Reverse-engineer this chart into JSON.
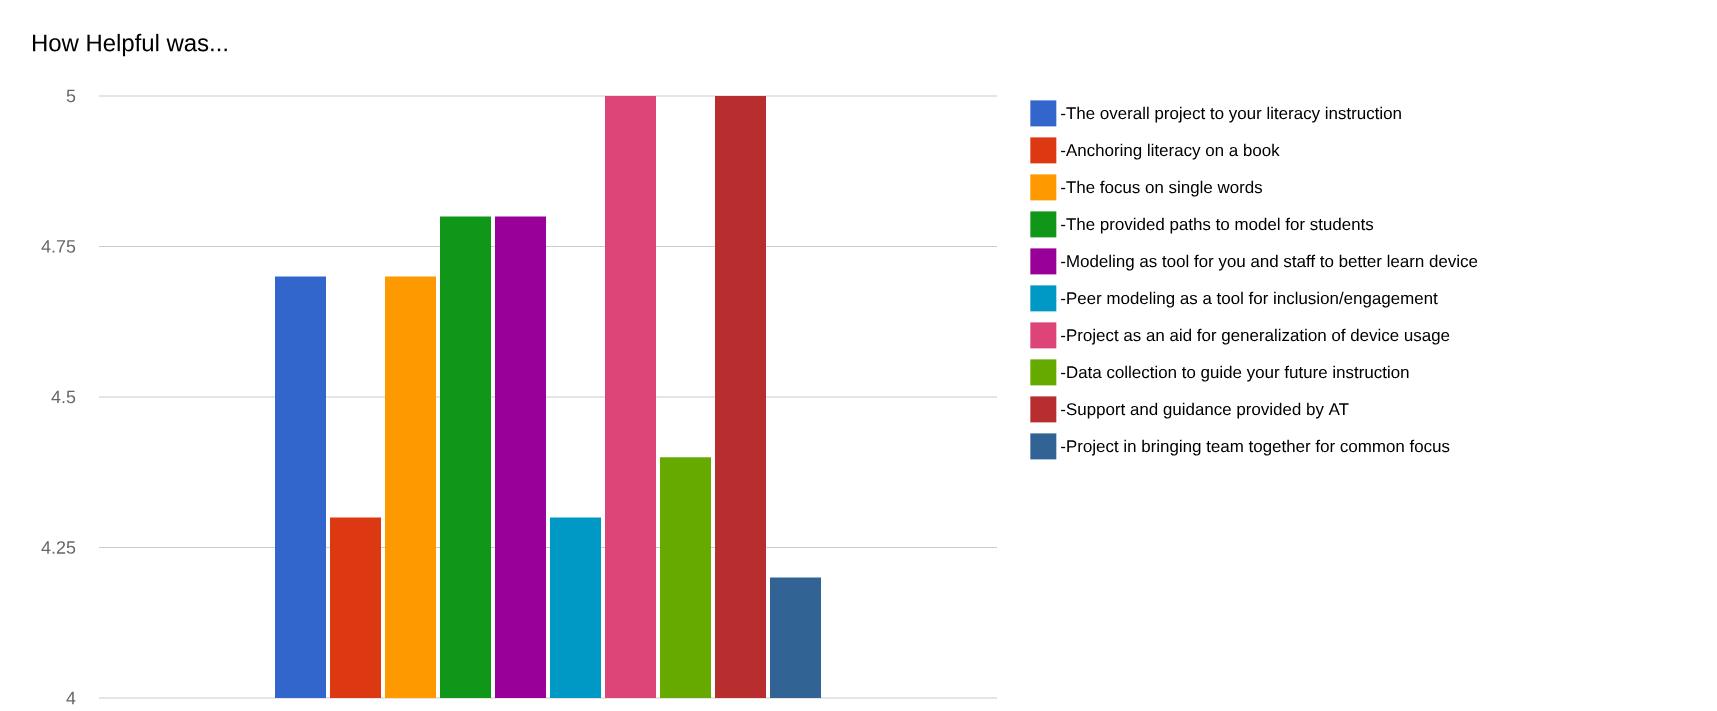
{
  "chart_data": {
    "type": "bar",
    "title": "How Helpful was...",
    "categories": [
      null
    ],
    "series": [
      {
        "name": "-The overall project to your literacy instruction",
        "color": "#3366cc",
        "values": [
          4.7
        ]
      },
      {
        "name": "-Anchoring literacy on a book",
        "color": "#dc3912",
        "values": [
          4.3
        ]
      },
      {
        "name": "-The focus on single words",
        "color": "#ff9900",
        "values": [
          4.7
        ]
      },
      {
        "name": "-The provided paths to model for students",
        "color": "#109618",
        "values": [
          4.8
        ]
      },
      {
        "name": "-Modeling as tool for you and staff to better learn device",
        "color": "#990099",
        "values": [
          4.8
        ]
      },
      {
        "name": "-Peer modeling as a tool for inclusion/engagement",
        "color": "#0099c6",
        "values": [
          4.3
        ]
      },
      {
        "name": "-Project as an aid for generalization of device usage",
        "color": "#dd4477",
        "values": [
          5
        ]
      },
      {
        "name": "-Data collection to guide your future instruction",
        "color": "#66aa00",
        "values": [
          4.4
        ]
      },
      {
        "name": "-Support and guidance provided by AT",
        "color": "#b82e2e",
        "values": [
          5
        ]
      },
      {
        "name": "-Project in bringing team together for common focus",
        "color": "#316395",
        "values": [
          4.2
        ]
      }
    ],
    "ylim": [
      4,
      5
    ],
    "yticks": [
      4,
      4.25,
      4.5,
      4.75,
      5
    ],
    "grid": "y",
    "legend": "right"
  }
}
